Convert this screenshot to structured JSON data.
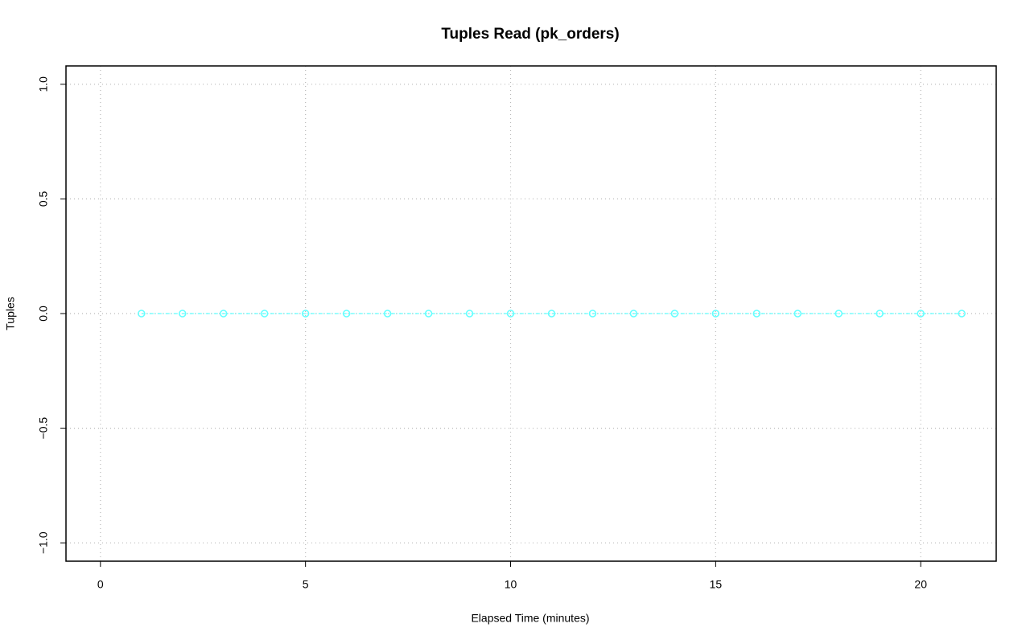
{
  "chart_data": {
    "type": "line",
    "title": "Tuples Read (pk_orders)",
    "xlabel": "Elapsed Time (minutes)",
    "ylabel": "Tuples",
    "x": [
      1,
      2,
      3,
      4,
      5,
      6,
      7,
      8,
      9,
      10,
      11,
      12,
      13,
      14,
      15,
      16,
      17,
      18,
      19,
      20,
      21
    ],
    "series": [
      {
        "color": "#66ffff",
        "values": [
          0,
          0,
          0,
          0,
          0,
          0,
          0,
          0,
          0,
          0,
          0,
          0,
          0,
          0,
          0,
          0,
          0,
          0,
          0,
          0,
          0
        ]
      }
    ],
    "xlim": [
      -0.84,
      21.84
    ],
    "xticks": [
      0,
      5,
      10,
      15,
      20
    ],
    "ylim": [
      -1.08,
      1.08
    ],
    "yticks": [
      {
        "value": -1,
        "label": "−1.0"
      },
      {
        "value": -0.5,
        "label": "−0.5"
      },
      {
        "value": 0,
        "label": "0.0"
      },
      0.5,
      {
        "value": 1,
        "label": "1.0"
      }
    ],
    "grid": true
  }
}
